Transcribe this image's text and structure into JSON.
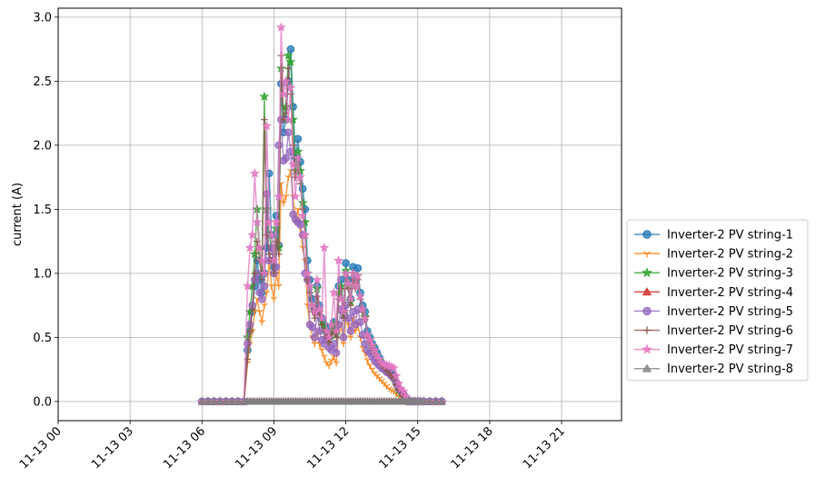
{
  "chart_data": {
    "type": "line",
    "title": "",
    "xlabel": "",
    "ylabel": "current (A)",
    "x_unit": "hours on 11-13",
    "xlim": [
      0,
      23.5
    ],
    "ylim": [
      -0.15,
      3.07
    ],
    "x_ticks": [
      {
        "value": 0,
        "label": "11-13 00"
      },
      {
        "value": 3,
        "label": "11-13 03"
      },
      {
        "value": 6,
        "label": "11-13 06"
      },
      {
        "value": 9,
        "label": "11-13 09"
      },
      {
        "value": 12,
        "label": "11-13 12"
      },
      {
        "value": 15,
        "label": "11-13 15"
      },
      {
        "value": 18,
        "label": "11-13 18"
      },
      {
        "value": 21,
        "label": "11-13 21"
      }
    ],
    "y_ticks": [
      {
        "value": 0.0,
        "label": "0.0"
      },
      {
        "value": 0.5,
        "label": "0.5"
      },
      {
        "value": 1.0,
        "label": "1.0"
      },
      {
        "value": 1.5,
        "label": "1.5"
      },
      {
        "value": 2.0,
        "label": "2.0"
      },
      {
        "value": 2.5,
        "label": "2.5"
      },
      {
        "value": 3.0,
        "label": "3.0"
      }
    ],
    "grid": true,
    "legend_position": "right-outside",
    "x": [
      6.0,
      6.25,
      6.5,
      6.75,
      7.0,
      7.25,
      7.5,
      7.75,
      7.9,
      8.0,
      8.1,
      8.2,
      8.3,
      8.4,
      8.5,
      8.6,
      8.7,
      8.8,
      8.9,
      9.0,
      9.1,
      9.2,
      9.3,
      9.4,
      9.5,
      9.6,
      9.7,
      9.8,
      9.9,
      10.0,
      10.1,
      10.2,
      10.3,
      10.4,
      10.5,
      10.6,
      10.7,
      10.8,
      10.9,
      11.0,
      11.1,
      11.2,
      11.3,
      11.4,
      11.5,
      11.6,
      11.7,
      11.8,
      11.9,
      12.0,
      12.1,
      12.2,
      12.3,
      12.4,
      12.5,
      12.6,
      12.7,
      12.8,
      12.9,
      13.0,
      13.1,
      13.2,
      13.3,
      13.4,
      13.5,
      13.6,
      13.7,
      13.8,
      13.9,
      14.0,
      14.1,
      14.2,
      14.3,
      14.4,
      14.5,
      14.6,
      14.7,
      14.8,
      14.9,
      15.0,
      15.1,
      15.25,
      15.5,
      15.75,
      16.0
    ],
    "series": [
      {
        "name": "Inverter-2 PV string-1",
        "color": "#1f77b4",
        "marker": "circle",
        "values": [
          0,
          0,
          0,
          0,
          0,
          0,
          0,
          0,
          0.4,
          0.55,
          0.7,
          0.9,
          1.1,
          0.95,
          0.85,
          1.0,
          1.2,
          1.78,
          1.3,
          1.05,
          1.45,
          1.22,
          2.48,
          2.1,
          2.2,
          2.5,
          2.75,
          2.3,
          1.9,
          2.05,
          1.87,
          1.66,
          1.5,
          1.1,
          0.95,
          0.8,
          0.72,
          0.9,
          0.75,
          0.65,
          0.6,
          0.55,
          0.5,
          0.58,
          0.62,
          0.55,
          0.9,
          0.95,
          0.7,
          1.08,
          0.95,
          0.8,
          1.05,
          0.95,
          1.04,
          0.85,
          0.75,
          0.7,
          0.55,
          0.5,
          0.45,
          0.42,
          0.38,
          0.34,
          0.3,
          0.28,
          0.26,
          0.24,
          0.22,
          0.2,
          0.15,
          0.1,
          0.08,
          0.05,
          0.02,
          0,
          0,
          0,
          0,
          0,
          0,
          0,
          0,
          0,
          0
        ]
      },
      {
        "name": "Inverter-2 PV string-2",
        "color": "#ff7f0e",
        "marker": "tri_down",
        "values": [
          0,
          0,
          0,
          0,
          0,
          0,
          0,
          0,
          0.3,
          0.45,
          0.55,
          0.7,
          0.8,
          0.7,
          0.62,
          0.75,
          0.85,
          1.1,
          0.9,
          0.8,
          1.0,
          0.9,
          1.7,
          1.55,
          1.6,
          1.75,
          1.8,
          1.6,
          1.4,
          1.5,
          1.35,
          1.2,
          1.1,
          0.75,
          0.6,
          0.5,
          0.45,
          0.55,
          0.45,
          0.4,
          0.35,
          0.3,
          0.28,
          0.32,
          0.35,
          0.3,
          0.55,
          0.6,
          0.45,
          0.7,
          0.6,
          0.5,
          0.65,
          0.55,
          0.6,
          0.5,
          0.42,
          0.38,
          0.32,
          0.28,
          0.25,
          0.22,
          0.2,
          0.18,
          0.16,
          0.14,
          0.12,
          0.1,
          0.09,
          0.08,
          0.06,
          0.04,
          0.03,
          0.02,
          0.01,
          0,
          0,
          0,
          0,
          0,
          0,
          0,
          0,
          0,
          0
        ]
      },
      {
        "name": "Inverter-2 PV string-3",
        "color": "#2ca02c",
        "marker": "star",
        "values": [
          0,
          0,
          0,
          0,
          0,
          0,
          0,
          0,
          0.5,
          0.7,
          0.9,
          1.15,
          1.5,
          1.2,
          1.0,
          2.38,
          1.5,
          1.3,
          1.2,
          1.1,
          1.35,
          1.2,
          2.6,
          2.2,
          2.3,
          2.7,
          2.65,
          2.2,
          1.8,
          1.95,
          1.8,
          1.55,
          1.4,
          1.0,
          0.9,
          0.75,
          0.7,
          0.88,
          0.7,
          0.62,
          0.58,
          0.52,
          0.48,
          0.55,
          0.6,
          0.52,
          0.85,
          0.9,
          0.68,
          1.02,
          0.9,
          0.78,
          1.0,
          0.9,
          0.98,
          0.82,
          0.72,
          0.66,
          0.52,
          0.48,
          0.43,
          0.4,
          0.36,
          0.32,
          0.29,
          0.27,
          0.25,
          0.23,
          0.21,
          0.19,
          0.14,
          0.09,
          0.07,
          0.05,
          0.02,
          0,
          0,
          0,
          0,
          0,
          0,
          0,
          0,
          0,
          0
        ]
      },
      {
        "name": "Inverter-2 PV string-4",
        "color": "#d62728",
        "marker": "triangle",
        "values": [
          0,
          0,
          0,
          0,
          0,
          0,
          0,
          0,
          0,
          0,
          0,
          0,
          0,
          0,
          0,
          0,
          0,
          0,
          0,
          0,
          0,
          0,
          0,
          0,
          0,
          0,
          0,
          0,
          0,
          0,
          0,
          0,
          0,
          0,
          0,
          0,
          0,
          0,
          0,
          0,
          0,
          0,
          0,
          0,
          0,
          0,
          0,
          0,
          0,
          0,
          0,
          0,
          0,
          0,
          0,
          0,
          0,
          0,
          0,
          0,
          0,
          0,
          0,
          0,
          0,
          0,
          0,
          0,
          0,
          0,
          0,
          0,
          0,
          0,
          0,
          0,
          0,
          0,
          0,
          0,
          0,
          0,
          0,
          0,
          0
        ]
      },
      {
        "name": "Inverter-2 PV string-5",
        "color": "#9467bd",
        "marker": "circle",
        "values": [
          0,
          0,
          0,
          0,
          0,
          0,
          0,
          0,
          0.45,
          0.6,
          0.75,
          0.95,
          1.0,
          0.85,
          0.8,
          0.9,
          1.62,
          1.1,
          1.2,
          1.0,
          1.05,
          2.0,
          2.2,
          1.88,
          1.9,
          2.1,
          1.95,
          1.46,
          1.42,
          1.4,
          1.38,
          1.3,
          1.0,
          0.95,
          0.6,
          0.58,
          0.5,
          0.7,
          0.55,
          0.48,
          0.45,
          0.5,
          0.42,
          0.4,
          0.45,
          0.38,
          0.6,
          0.72,
          0.5,
          0.75,
          0.65,
          0.55,
          0.7,
          0.6,
          0.72,
          0.62,
          0.52,
          0.45,
          0.4,
          0.38,
          0.35,
          0.32,
          0.3,
          0.28,
          0.26,
          0.25,
          0.23,
          0.22,
          0.2,
          0.18,
          0.14,
          0.1,
          0.08,
          0.06,
          0.03,
          0,
          0,
          0,
          0,
          0,
          0,
          0,
          0,
          0,
          0
        ]
      },
      {
        "name": "Inverter-2 PV string-6",
        "color": "#8c564b",
        "marker": "plus",
        "values": [
          0,
          0,
          0,
          0,
          0,
          0,
          0,
          0,
          0.33,
          0.55,
          0.72,
          1.0,
          1.25,
          1.1,
          0.95,
          2.2,
          1.3,
          1.15,
          1.1,
          1.0,
          1.25,
          1.15,
          2.7,
          2.2,
          2.25,
          2.6,
          2.4,
          2.0,
          1.75,
          1.85,
          1.7,
          1.5,
          1.3,
          0.95,
          0.85,
          0.7,
          0.65,
          0.82,
          0.68,
          0.6,
          0.55,
          0.5,
          0.46,
          0.52,
          0.56,
          0.5,
          0.8,
          0.88,
          0.65,
          0.98,
          0.88,
          0.75,
          0.95,
          0.88,
          0.95,
          0.8,
          0.7,
          0.64,
          0.5,
          0.46,
          0.42,
          0.38,
          0.35,
          0.31,
          0.28,
          0.26,
          0.24,
          0.22,
          0.2,
          0.18,
          0.13,
          0.09,
          0.07,
          0.04,
          0.02,
          0,
          0,
          0,
          0,
          0,
          0,
          0,
          0,
          0,
          0
        ]
      },
      {
        "name": "Inverter-2 PV string-7",
        "color": "#e377c2",
        "marker": "star",
        "values": [
          0,
          0,
          0,
          0,
          0,
          0,
          0,
          0,
          0.9,
          1.2,
          1.3,
          1.78,
          1.4,
          1.2,
          1.1,
          1.0,
          2.15,
          1.4,
          1.3,
          1.1,
          1.4,
          1.6,
          2.92,
          2.4,
          2.5,
          2.2,
          2.45,
          1.85,
          1.6,
          1.9,
          1.75,
          1.45,
          1.3,
          1.0,
          0.9,
          0.75,
          0.7,
          0.95,
          0.72,
          0.65,
          1.2,
          0.55,
          0.5,
          0.6,
          0.85,
          0.55,
          1.1,
          0.8,
          0.7,
          1.0,
          0.92,
          0.8,
          1.0,
          0.9,
          0.98,
          0.82,
          0.72,
          0.65,
          0.52,
          0.48,
          0.44,
          0.4,
          0.36,
          0.33,
          0.3,
          0.29,
          0.28,
          0.28,
          0.27,
          0.26,
          0.2,
          0.14,
          0.1,
          0.08,
          0.04,
          0,
          0,
          0,
          0,
          0,
          0,
          0,
          0,
          0,
          0
        ]
      },
      {
        "name": "Inverter-2 PV string-8",
        "color": "#7f7f7f",
        "marker": "triangle",
        "values": [
          0,
          0,
          0,
          0,
          0,
          0,
          0,
          0,
          0,
          0,
          0,
          0,
          0,
          0,
          0,
          0,
          0,
          0,
          0,
          0,
          0,
          0,
          0,
          0,
          0,
          0,
          0,
          0,
          0,
          0,
          0,
          0,
          0,
          0,
          0,
          0,
          0,
          0,
          0,
          0,
          0,
          0,
          0,
          0,
          0,
          0,
          0,
          0,
          0,
          0,
          0,
          0,
          0,
          0,
          0,
          0,
          0,
          0,
          0,
          0,
          0,
          0,
          0,
          0,
          0,
          0,
          0,
          0,
          0,
          0,
          0,
          0,
          0,
          0,
          0,
          0,
          0,
          0,
          0,
          0,
          0,
          0,
          0,
          0,
          0
        ]
      }
    ]
  }
}
